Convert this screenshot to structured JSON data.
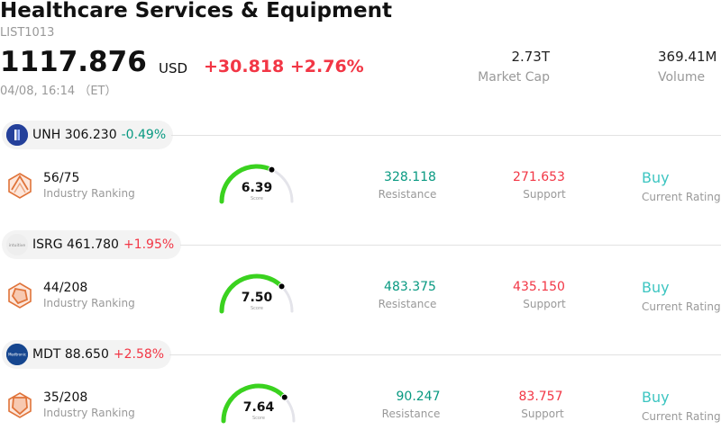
{
  "header": {
    "title": "Healthcare Services & Equipment",
    "code": "LIST1013",
    "price": "1117.876",
    "currency": "USD",
    "change": "+30.818",
    "change_pct": "+2.76%",
    "datetime": "04/08, 16:14 （ET）"
  },
  "metrics": {
    "market_cap_value": "2.73T",
    "market_cap_label": "Market Cap",
    "volume_value": "369.41M",
    "volume_label": "Volume"
  },
  "colors": {
    "up": "#f23645",
    "down": "#089981",
    "rating": "#3cc5c1",
    "gauge_green": "#3ad21f",
    "gauge_track": "#e4e4ea"
  },
  "stocks": [
    {
      "ticker": "UNH",
      "price": "306.230",
      "change": "-0.49%",
      "logo_icon": "unitedhealth-logo-icon",
      "rank": "56/75",
      "rank_label": "Industry Ranking",
      "score": "6.39",
      "score_label": "Score",
      "score_fraction": 0.639,
      "resistance": "328.118",
      "resistance_label": "Resistance",
      "support": "271.653",
      "support_label": "Support",
      "rating": "Buy",
      "rating_label": "Current Rating"
    },
    {
      "ticker": "ISRG",
      "price": "461.780",
      "change": "+1.95%",
      "logo_icon": "intuitive-logo-icon",
      "rank": "44/208",
      "rank_label": "Industry Ranking",
      "score": "7.50",
      "score_label": "Score",
      "score_fraction": 0.75,
      "resistance": "483.375",
      "resistance_label": "Resistance",
      "support": "435.150",
      "support_label": "Support",
      "rating": "Buy",
      "rating_label": "Current Rating"
    },
    {
      "ticker": "MDT",
      "price": "88.650",
      "change": "+2.58%",
      "logo_icon": "medtronic-logo-icon",
      "rank": "35/208",
      "rank_label": "Industry Ranking",
      "score": "7.64",
      "score_label": "Score",
      "score_fraction": 0.764,
      "resistance": "90.247",
      "resistance_label": "Resistance",
      "support": "83.757",
      "support_label": "Support",
      "rating": "Buy",
      "rating_label": "Current Rating"
    }
  ]
}
